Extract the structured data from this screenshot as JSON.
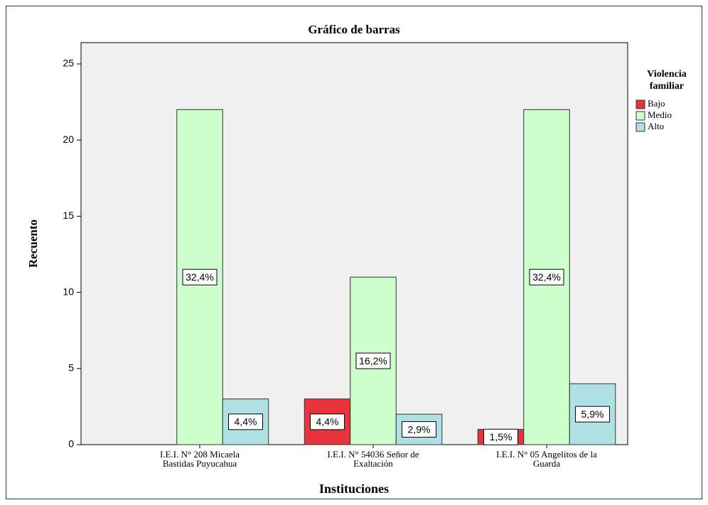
{
  "chart_data": {
    "type": "bar",
    "title": "Gráfico de barras",
    "x_label": "Instituciones",
    "y_label": "Recuento",
    "legend_title": [
      "Violencia",
      "familiar"
    ],
    "legend": "right",
    "categories": [
      [
        "I.E.I. N° 208 Micaela",
        "Bastidas Puyucahua"
      ],
      [
        "I.E.I. N° 54036 Señor de",
        "Exaltación"
      ],
      [
        "I.E.I. N° 05 Angelitos de la",
        "Guarda"
      ]
    ],
    "series": [
      {
        "name": "Bajo",
        "color": "#e8333c",
        "values": [
          0,
          3,
          1
        ],
        "value_labels": [
          null,
          "4,4%",
          "1,5%"
        ]
      },
      {
        "name": "Medio",
        "color": "#ccffcc",
        "values": [
          22,
          11,
          22
        ],
        "value_labels": [
          "32,4%",
          "16,2%",
          "32,4%"
        ]
      },
      {
        "name": "Alto",
        "color": "#aee0e4",
        "values": [
          3,
          2,
          4
        ],
        "value_labels": [
          "4,4%",
          "2,9%",
          "5,9%"
        ]
      }
    ],
    "ylim": [
      0,
      26.4
    ],
    "yticks": [
      0,
      5,
      10,
      15,
      20,
      25
    ]
  }
}
